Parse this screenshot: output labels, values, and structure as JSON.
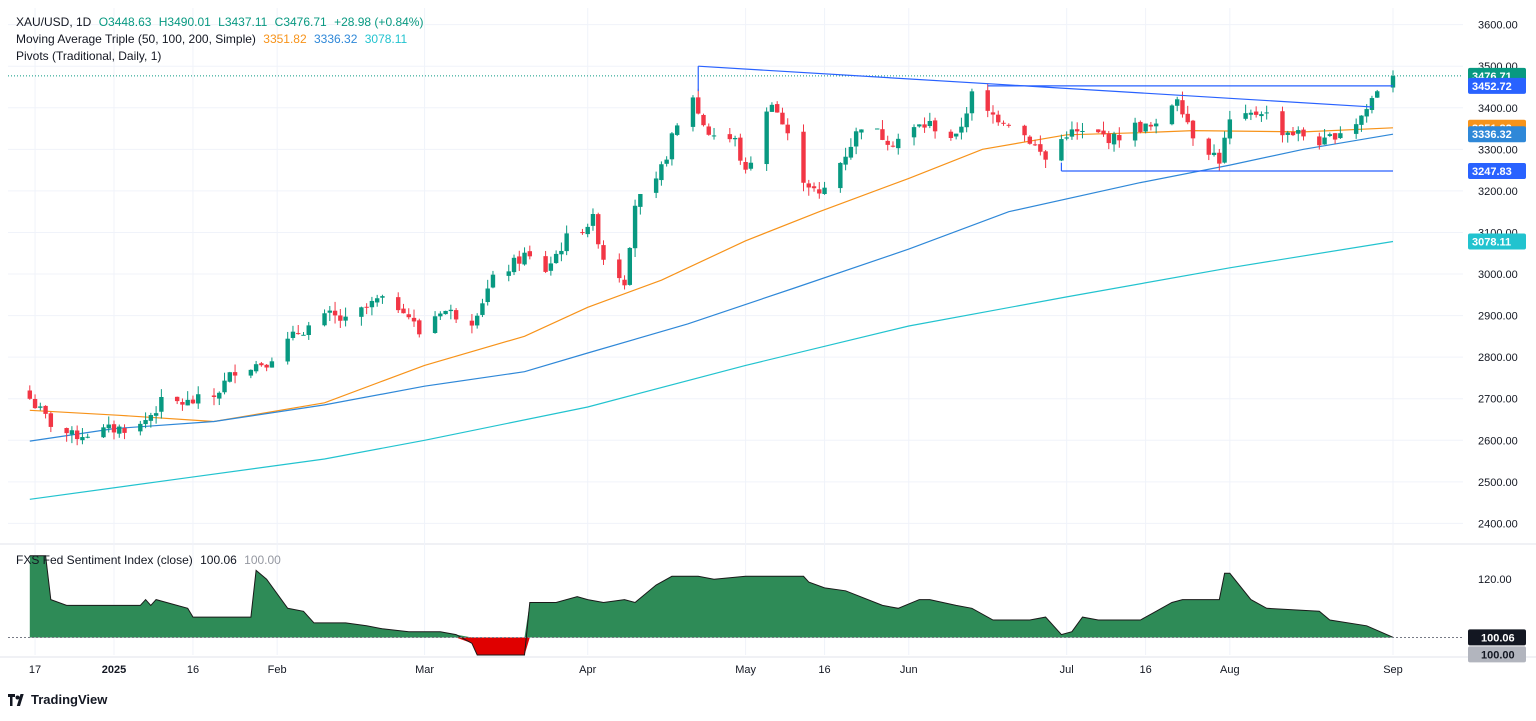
{
  "header": {
    "symbol": "XAU/USD, 1D",
    "open": "O3448.63",
    "high": "H3490.01",
    "low": "L3437.11",
    "close": "C3476.71",
    "change": "+28.98 (+0.84%)",
    "ma_label": "Moving Average Triple (50, 100, 200, Simple)",
    "ma50": "3351.82",
    "ma100": "3336.32",
    "ma200": "3078.11",
    "pivots_label": "Pivots (Traditional, Daily, 1)"
  },
  "indicator": {
    "label": "FXS Fed Sentiment Index (close)",
    "value": "100.06",
    "baseline": "100.00"
  },
  "footer": {
    "brand": "TradingView"
  },
  "colors": {
    "up": "#089981",
    "down": "#f23645",
    "ma50": "#f7931a",
    "ma100": "#2f88d8",
    "ma200": "#22c3cf",
    "trend": "#2962ff",
    "sentiment_fill": "#2e8b57",
    "sentiment_neg": "#e00000"
  },
  "chart_data": [
    {
      "type": "candlestick",
      "title": "XAU/USD, 1D",
      "x_tick_labels": [
        "17",
        "2025",
        "16",
        "Feb",
        "Mar",
        "Apr",
        "May",
        "16",
        "Jun",
        "Jul",
        "16",
        "Aug",
        "Sep"
      ],
      "y_tick_labels": [
        "2400.00",
        "2500.00",
        "2600.00",
        "2700.00",
        "2800.00",
        "2900.00",
        "3000.00",
        "3100.00",
        "3200.00",
        "3300.00",
        "3400.00",
        "3500.00",
        "3600.00"
      ],
      "ylim": [
        2360,
        3640
      ],
      "grid": true,
      "close_anchors": [
        [
          "2024-12-16",
          2700
        ],
        [
          "2024-12-20",
          2640
        ],
        [
          "2024-12-24",
          2610
        ],
        [
          "2024-12-31",
          2625
        ],
        [
          "2025-01-06",
          2635
        ],
        [
          "2025-01-10",
          2690
        ],
        [
          "2025-01-15",
          2690
        ],
        [
          "2025-01-20",
          2705
        ],
        [
          "2025-01-24",
          2770
        ],
        [
          "2025-01-30",
          2790
        ],
        [
          "2025-02-05",
          2860
        ],
        [
          "2025-02-11",
          2900
        ],
        [
          "2025-02-14",
          2885
        ],
        [
          "2025-02-20",
          2935
        ],
        [
          "2025-02-25",
          2920
        ],
        [
          "2025-02-28",
          2858
        ],
        [
          "2025-03-04",
          2915
        ],
        [
          "2025-03-10",
          2890
        ],
        [
          "2025-03-14",
          2985
        ],
        [
          "2025-03-20",
          3045
        ],
        [
          "2025-03-24",
          3010
        ],
        [
          "2025-03-28",
          3085
        ],
        [
          "2025-04-02",
          3130
        ],
        [
          "2025-04-04",
          3040
        ],
        [
          "2025-04-08",
          2985
        ],
        [
          "2025-04-10",
          3170
        ],
        [
          "2025-04-14",
          3215
        ],
        [
          "2025-04-17",
          3325
        ],
        [
          "2025-04-21",
          3430
        ],
        [
          "2025-04-22",
          3385
        ],
        [
          "2025-04-24",
          3340
        ],
        [
          "2025-04-29",
          3320
        ],
        [
          "2025-05-01",
          3240
        ],
        [
          "2025-05-06",
          3420
        ],
        [
          "2025-05-09",
          3330
        ],
        [
          "2025-05-12",
          3232
        ],
        [
          "2025-05-15",
          3185
        ],
        [
          "2025-05-16",
          3205
        ],
        [
          "2025-05-20",
          3290
        ],
        [
          "2025-05-23",
          3360
        ],
        [
          "2025-05-29",
          3318
        ],
        [
          "2025-06-03",
          3355
        ],
        [
          "2025-06-05",
          3360
        ],
        [
          "2025-06-10",
          3325
        ],
        [
          "2025-06-13",
          3430
        ],
        [
          "2025-06-16",
          3385
        ],
        [
          "2025-06-20",
          3368
        ],
        [
          "2025-06-24",
          3323
        ],
        [
          "2025-06-27",
          3275
        ],
        [
          "2025-07-01",
          3340
        ],
        [
          "2025-07-07",
          3335
        ],
        [
          "2025-07-10",
          3325
        ],
        [
          "2025-07-14",
          3355
        ],
        [
          "2025-07-18",
          3350
        ],
        [
          "2025-07-22",
          3430
        ],
        [
          "2025-07-25",
          3337
        ],
        [
          "2025-07-30",
          3275
        ],
        [
          "2025-08-01",
          3365
        ],
        [
          "2025-08-04",
          3373
        ],
        [
          "2025-08-07",
          3395
        ],
        [
          "2025-08-11",
          3345
        ],
        [
          "2025-08-14",
          3338
        ],
        [
          "2025-08-19",
          3315
        ],
        [
          "2025-08-21",
          3338
        ],
        [
          "2025-08-25",
          3366
        ],
        [
          "2025-08-27",
          3397
        ],
        [
          "2025-08-29",
          3447
        ],
        [
          "2025-09-01",
          3476.71
        ]
      ],
      "series": [
        {
          "name": "MA 50",
          "last": 3351.82,
          "points": [
            [
              "2024-12-16",
              2672
            ],
            [
              "2025-01-02",
              2660
            ],
            [
              "2025-01-20",
              2645
            ],
            [
              "2025-02-10",
              2690
            ],
            [
              "2025-03-01",
              2780
            ],
            [
              "2025-03-20",
              2850
            ],
            [
              "2025-04-01",
              2920
            ],
            [
              "2025-04-15",
              2985
            ],
            [
              "2025-05-01",
              3080
            ],
            [
              "2025-05-15",
              3150
            ],
            [
              "2025-06-01",
              3230
            ],
            [
              "2025-06-15",
              3300
            ],
            [
              "2025-07-01",
              3335
            ],
            [
              "2025-07-15",
              3340
            ],
            [
              "2025-07-25",
              3345
            ],
            [
              "2025-08-15",
              3342
            ],
            [
              "2025-09-01",
              3351.82
            ]
          ]
        },
        {
          "name": "MA 100",
          "last": 3336.32,
          "points": [
            [
              "2024-12-16",
              2598
            ],
            [
              "2025-01-01",
              2628
            ],
            [
              "2025-01-20",
              2645
            ],
            [
              "2025-02-10",
              2685
            ],
            [
              "2025-03-01",
              2730
            ],
            [
              "2025-03-20",
              2765
            ],
            [
              "2025-04-01",
              2810
            ],
            [
              "2025-04-20",
              2880
            ],
            [
              "2025-05-10",
              2965
            ],
            [
              "2025-06-01",
              3060
            ],
            [
              "2025-06-20",
              3150
            ],
            [
              "2025-07-15",
              3220
            ],
            [
              "2025-08-01",
              3262
            ],
            [
              "2025-08-15",
              3300
            ],
            [
              "2025-09-01",
              3336.32
            ]
          ]
        },
        {
          "name": "MA 200",
          "last": 3078.11,
          "points": [
            [
              "2024-12-16",
              2458
            ],
            [
              "2025-01-15",
              2510
            ],
            [
              "2025-02-10",
              2555
            ],
            [
              "2025-03-01",
              2600
            ],
            [
              "2025-04-01",
              2680
            ],
            [
              "2025-05-01",
              2780
            ],
            [
              "2025-06-01",
              2875
            ],
            [
              "2025-07-01",
              2945
            ],
            [
              "2025-08-01",
              3015
            ],
            [
              "2025-09-01",
              3078.11
            ]
          ]
        }
      ],
      "trendlines": [
        {
          "name": "descending-resistance",
          "from": [
            "2025-04-22",
            3500
          ],
          "to": [
            "2025-08-28",
            3402
          ]
        },
        {
          "name": "horizontal-resistance",
          "from": [
            "2025-04-22",
            3500
          ],
          "to": [
            "2025-04-22",
            3500
          ]
        },
        {
          "name": "resistance-level",
          "from": [
            "2025-06-16",
            3452.72
          ],
          "to": [
            "2025-09-01",
            3452.72
          ]
        },
        {
          "name": "support-level",
          "from": [
            "2025-06-30",
            3247.83
          ],
          "to": [
            "2025-09-01",
            3247.83
          ]
        }
      ],
      "price_labels": [
        {
          "value": 3476.71,
          "text": "3476.71",
          "color": "#089981"
        },
        {
          "value": 3452.72,
          "text": "3452.72",
          "color": "#2962ff"
        },
        {
          "value": 3351.82,
          "text": "3351.82",
          "color": "#f7931a"
        },
        {
          "value": 3336.32,
          "text": "3336.32",
          "color": "#2f88d8"
        },
        {
          "value": 3247.83,
          "text": "3247.83",
          "color": "#2962ff"
        },
        {
          "value": 3078.11,
          "text": "3078.11",
          "color": "#22c3cf"
        }
      ]
    },
    {
      "type": "area",
      "title": "FXS Fed Sentiment Index (close)",
      "y_tick_labels": [
        "120.00"
      ],
      "ylim": [
        94,
        130
      ],
      "baseline": 100,
      "points": [
        [
          "2024-12-16",
          128
        ],
        [
          "2024-12-19",
          128
        ],
        [
          "2024-12-20",
          113
        ],
        [
          "2024-12-23",
          111
        ],
        [
          "2024-12-24",
          111
        ],
        [
          "2025-01-02",
          111
        ],
        [
          "2025-01-06",
          111
        ],
        [
          "2025-01-07",
          113
        ],
        [
          "2025-01-08",
          111
        ],
        [
          "2025-01-09",
          113
        ],
        [
          "2025-01-15",
          110
        ],
        [
          "2025-01-16",
          107
        ],
        [
          "2025-01-27",
          107
        ],
        [
          "2025-01-28",
          123
        ],
        [
          "2025-01-30",
          120
        ],
        [
          "2025-02-03",
          110
        ],
        [
          "2025-02-06",
          109
        ],
        [
          "2025-02-08",
          105
        ],
        [
          "2025-02-14",
          105
        ],
        [
          "2025-02-18",
          104
        ],
        [
          "2025-02-21",
          103
        ],
        [
          "2025-02-26",
          102
        ],
        [
          "2025-03-04",
          102
        ],
        [
          "2025-03-07",
          101
        ],
        [
          "2025-03-10",
          98
        ],
        [
          "2025-03-11",
          94
        ],
        [
          "2025-03-20",
          94
        ],
        [
          "2025-03-21",
          112
        ],
        [
          "2025-03-26",
          112
        ],
        [
          "2025-03-30",
          114
        ],
        [
          "2025-04-01",
          113
        ],
        [
          "2025-04-04",
          112
        ],
        [
          "2025-04-08",
          113
        ],
        [
          "2025-04-10",
          112
        ],
        [
          "2025-04-14",
          118
        ],
        [
          "2025-04-17",
          121
        ],
        [
          "2025-04-22",
          121
        ],
        [
          "2025-04-25",
          120
        ],
        [
          "2025-05-01",
          121
        ],
        [
          "2025-05-12",
          121
        ],
        [
          "2025-05-13",
          119
        ],
        [
          "2025-05-16",
          117
        ],
        [
          "2025-05-20",
          116
        ],
        [
          "2025-05-27",
          111
        ],
        [
          "2025-05-30",
          110
        ],
        [
          "2025-06-03",
          113
        ],
        [
          "2025-06-05",
          113
        ],
        [
          "2025-06-10",
          111
        ],
        [
          "2025-06-13",
          110
        ],
        [
          "2025-06-17",
          106
        ],
        [
          "2025-06-24",
          106
        ],
        [
          "2025-06-27",
          107
        ],
        [
          "2025-06-30",
          101
        ],
        [
          "2025-07-02",
          102
        ],
        [
          "2025-07-04",
          107
        ],
        [
          "2025-07-07",
          106
        ],
        [
          "2025-07-15",
          106
        ],
        [
          "2025-07-18",
          109
        ],
        [
          "2025-07-21",
          112
        ],
        [
          "2025-07-23",
          113
        ],
        [
          "2025-07-30",
          113
        ],
        [
          "2025-07-31",
          122
        ],
        [
          "2025-08-01",
          122
        ],
        [
          "2025-08-05",
          113
        ],
        [
          "2025-08-08",
          110
        ],
        [
          "2025-08-18",
          109
        ],
        [
          "2025-08-20",
          106
        ],
        [
          "2025-08-27",
          104
        ],
        [
          "2025-09-01",
          100.06
        ]
      ]
    }
  ]
}
